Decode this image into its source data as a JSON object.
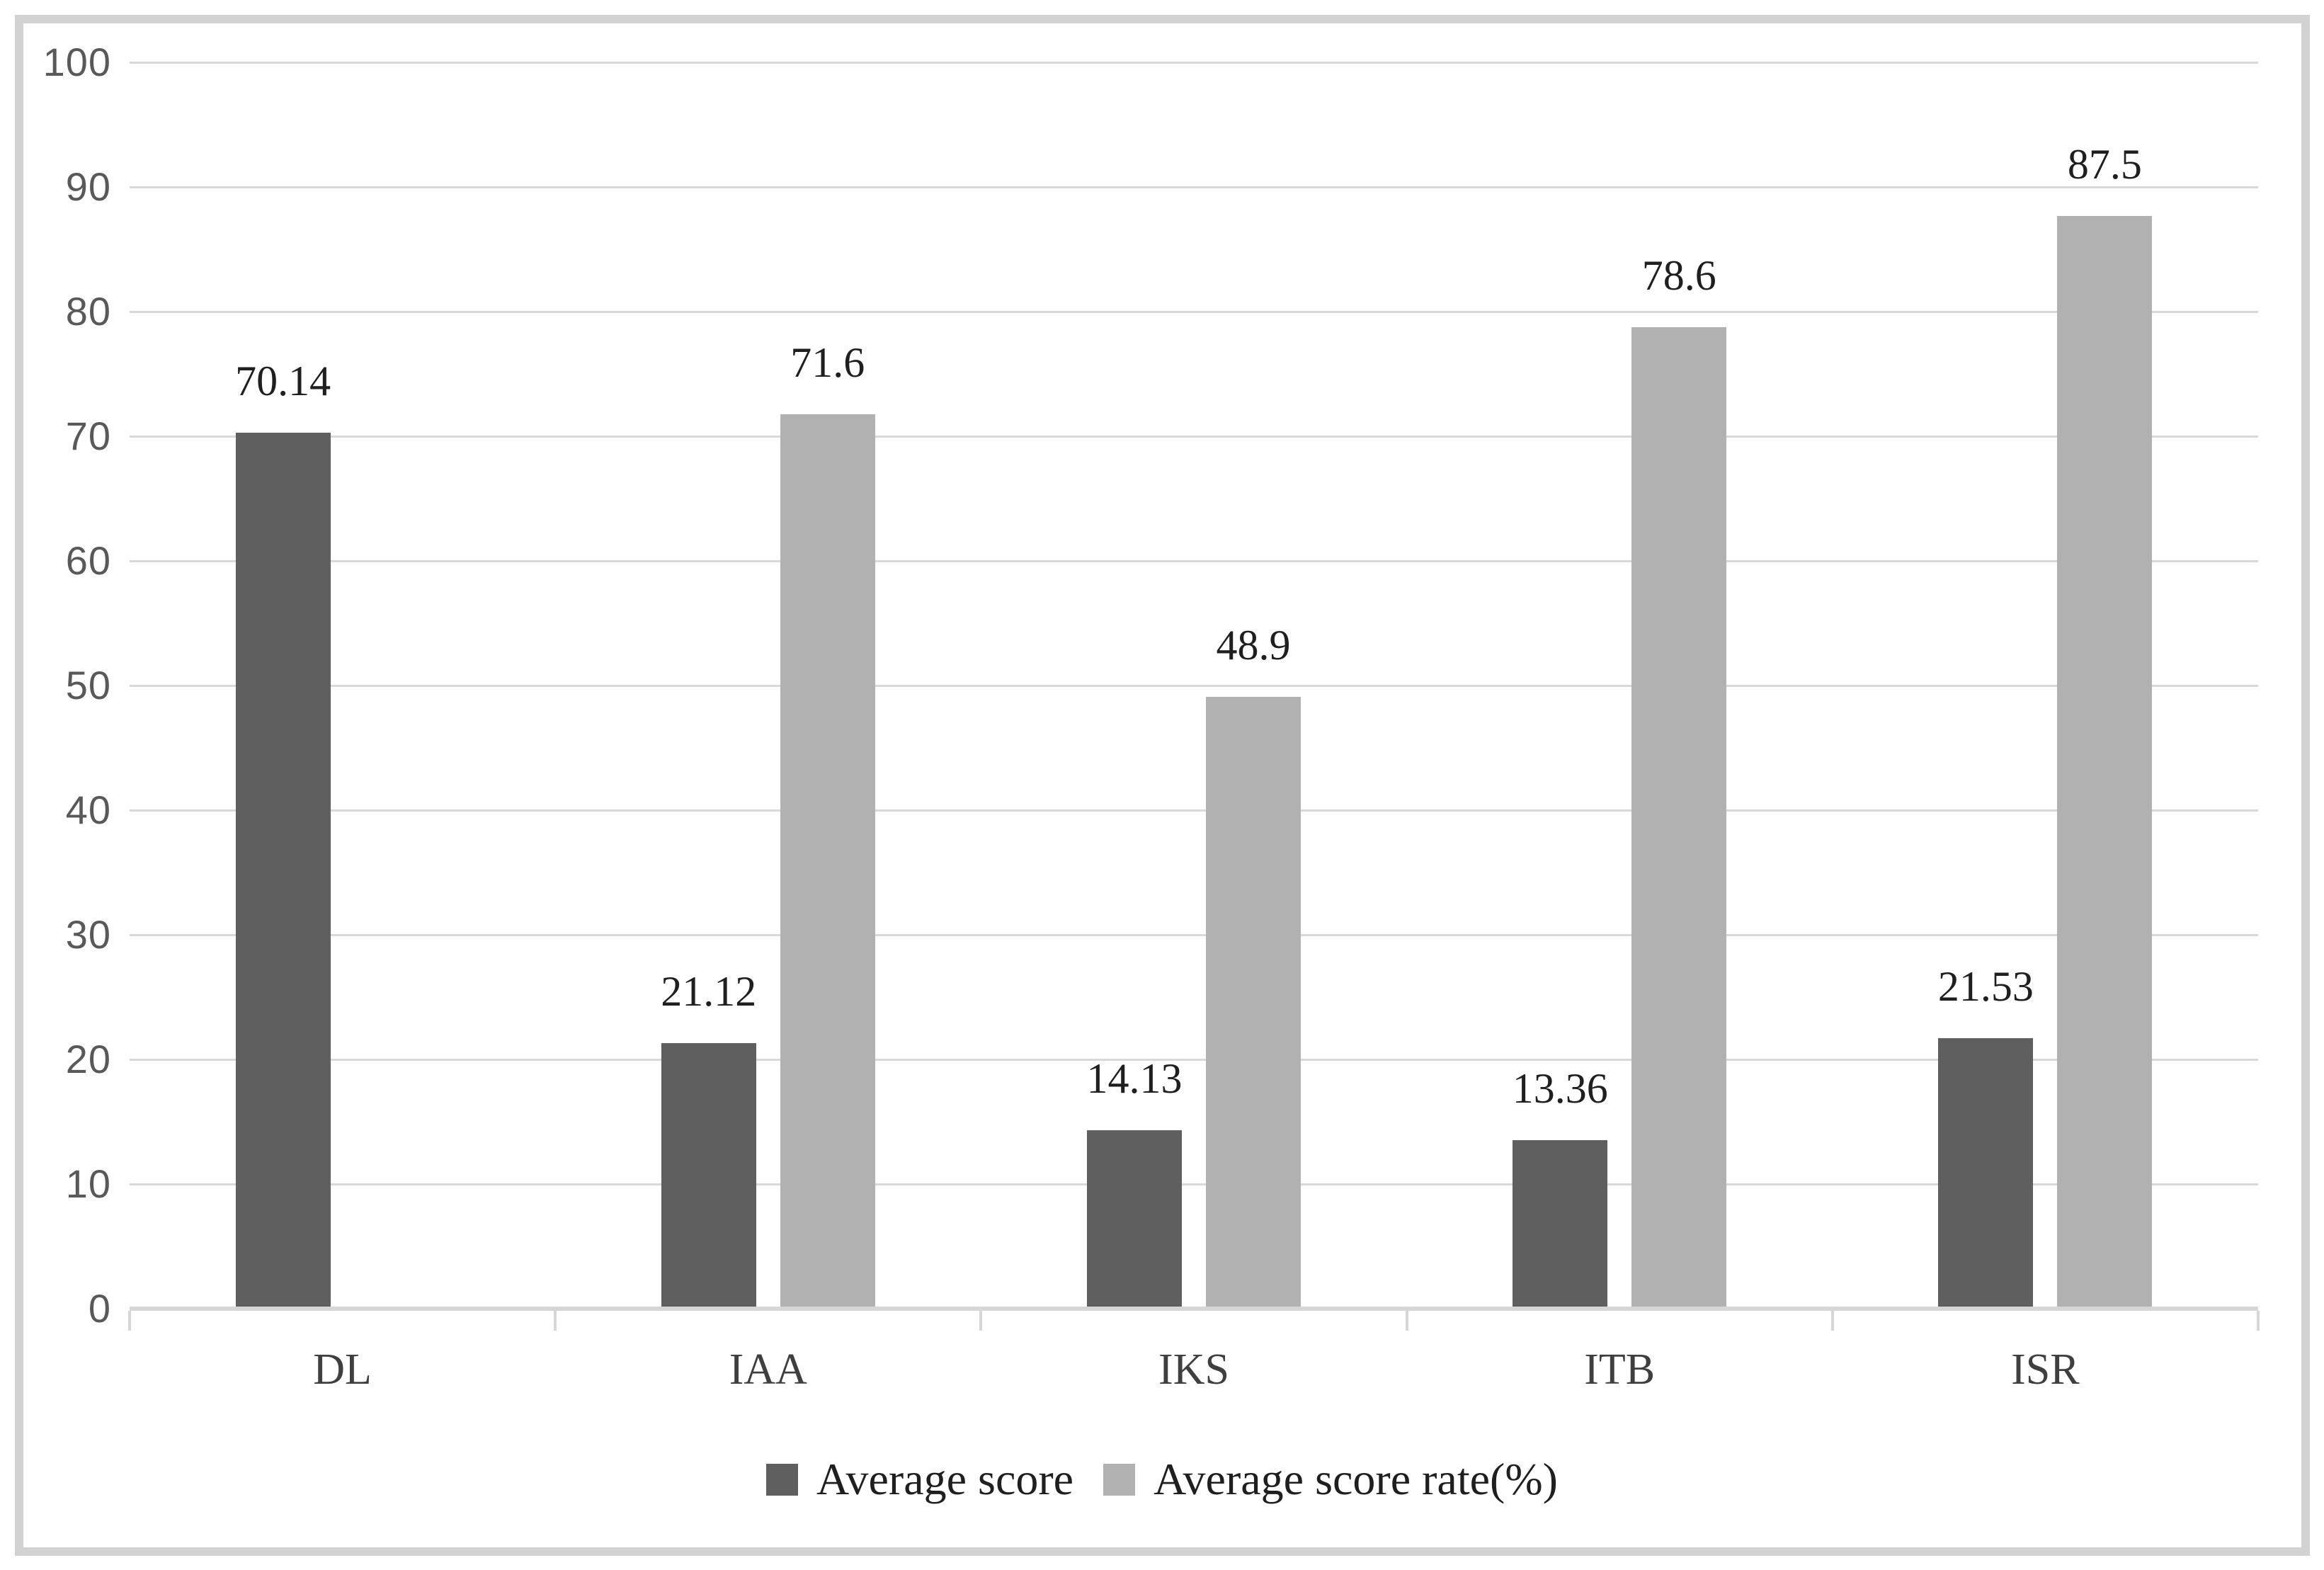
{
  "chart_data": {
    "type": "bar",
    "title": "",
    "categories": [
      "DL",
      "IAA",
      "IKS",
      "ITB",
      "ISR"
    ],
    "series": [
      {
        "name": "Average score",
        "color": "#5f5f5f",
        "values": [
          70.14,
          21.12,
          14.13,
          13.36,
          21.53
        ],
        "labels": [
          "70.14",
          "21.12",
          "14.13",
          "13.36",
          "21.53"
        ]
      },
      {
        "name": "Average score rate(%)",
        "color": "#b1b1b1",
        "values": [
          null,
          71.6,
          48.9,
          78.6,
          87.5
        ],
        "labels": [
          null,
          "71.6",
          "48.9",
          "78.6",
          "87.5"
        ]
      }
    ],
    "xlabel": "",
    "ylabel": "",
    "ylim": [
      0,
      100
    ],
    "ytick_step": 10,
    "ytick_labels": [
      "0",
      "10",
      "20",
      "30",
      "40",
      "50",
      "60",
      "70",
      "80",
      "90",
      "100"
    ],
    "grid": true,
    "legend_position": "bottom"
  },
  "style": {
    "background": "#ffffff",
    "frame_color": "#d2d2d2",
    "grid_color": "#d9d9d9",
    "axis_color": "#d6d6d6",
    "tick_label_color": "#595959",
    "category_label_color": "#3f3f3f",
    "data_label_color": "#1f1f1f",
    "legend_text_color": "#1f1f1f"
  }
}
